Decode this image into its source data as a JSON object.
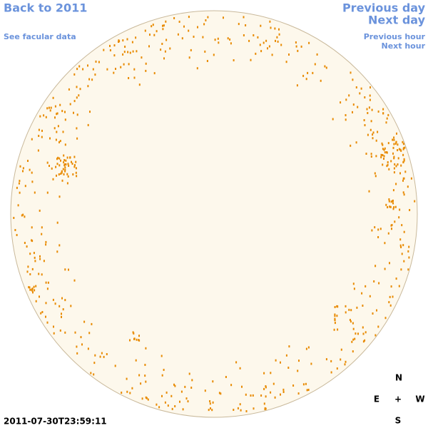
{
  "nav": {
    "back": "Back to 2011",
    "facular": "See facular data",
    "previous_day": "Previous day",
    "next_day": "Next day",
    "previous_hour": "Previous hour",
    "next_hour": "Next hour"
  },
  "timestamp": "2011-07-30T23:59:11",
  "compass": {
    "north": "N",
    "east": "E",
    "center": "+",
    "west": "W",
    "south": "S"
  }
}
